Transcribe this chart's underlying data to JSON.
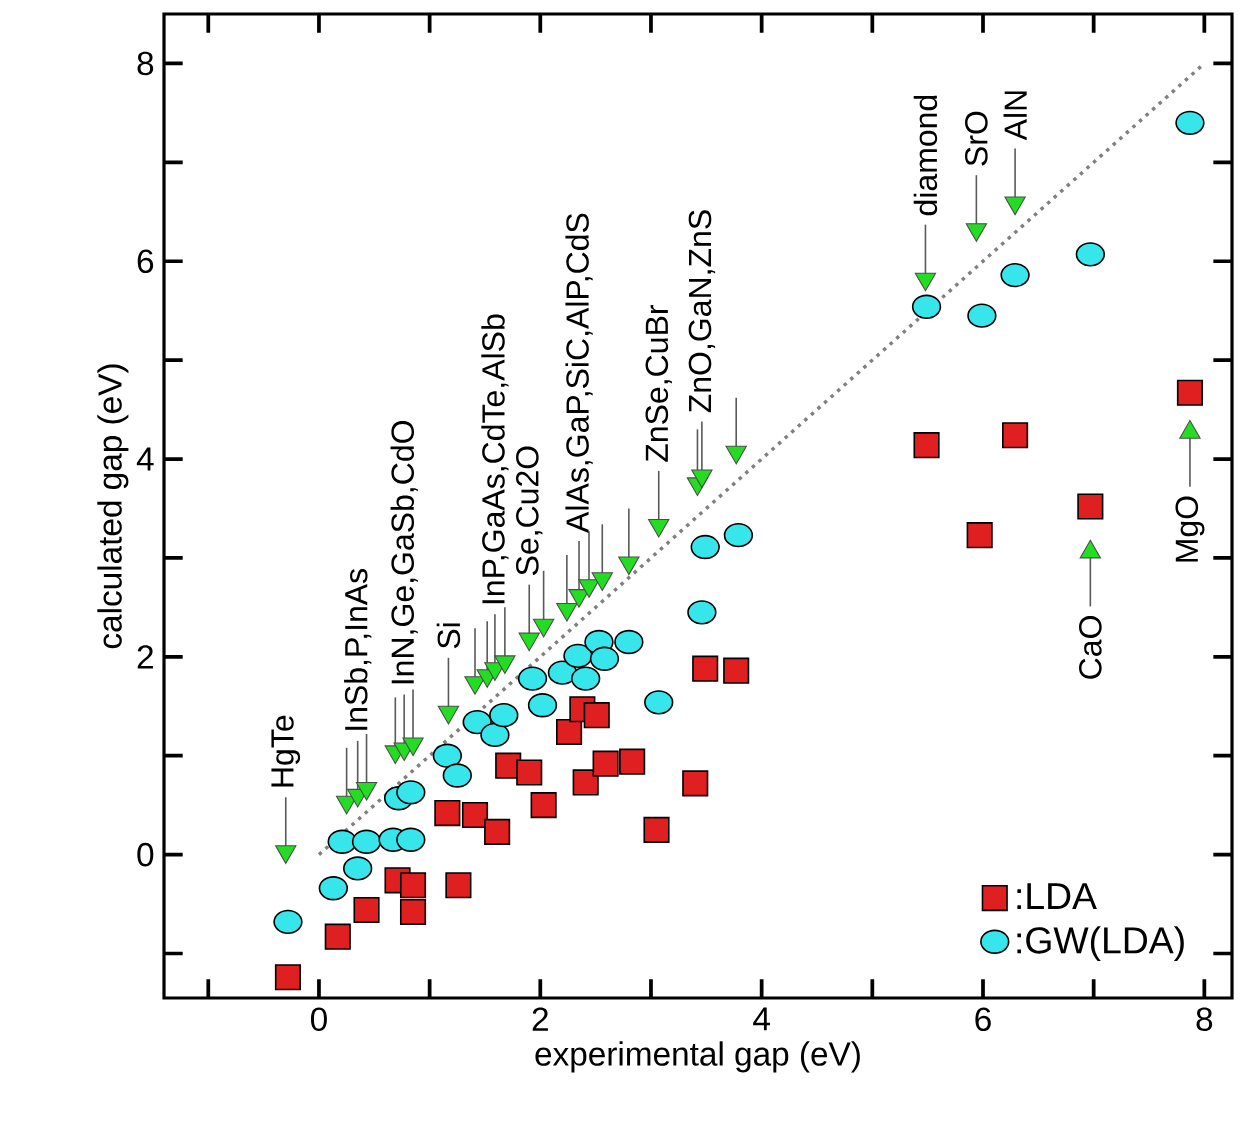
{
  "chart_data": {
    "type": "scatter",
    "xlabel": "experimental gap (eV)",
    "ylabel": "calculated gap (eV)",
    "xlim": [
      -1.4,
      8.25
    ],
    "ylim": [
      -1.45,
      8.5
    ],
    "xticks": [
      {
        "value": -1,
        "label": null
      },
      0,
      {
        "value": 1,
        "label": null
      },
      2,
      {
        "value": 3,
        "label": null
      },
      4,
      {
        "value": 5,
        "label": null
      },
      6,
      {
        "value": 7,
        "label": null
      },
      8
    ],
    "yticks": [
      {
        "value": -1,
        "label": null
      },
      0,
      {
        "value": 1,
        "label": null
      },
      2,
      {
        "value": 3,
        "label": null
      },
      4,
      {
        "value": 5,
        "label": null
      },
      6,
      {
        "value": 7,
        "label": null
      },
      8
    ],
    "legend": "bottom right",
    "series": [
      {
        "name": ":LDA",
        "marker": "square",
        "color": "#e02020",
        "x": [
          -0.28,
          0.17,
          0.43,
          0.71,
          0.85,
          0.85,
          1.26,
          1.16,
          1.41,
          1.61,
          1.71,
          1.9,
          2.03,
          2.26,
          2.38,
          2.51,
          2.41,
          2.59,
          2.83,
          3.05,
          3.4,
          3.49,
          3.77,
          5.49,
          5.97,
          6.29,
          6.97,
          7.87
        ],
        "values": [
          -1.24,
          -0.83,
          -0.56,
          -0.26,
          -0.31,
          -0.58,
          -0.31,
          0.42,
          0.4,
          0.23,
          0.9,
          0.83,
          0.5,
          1.24,
          1.47,
          1.41,
          0.73,
          0.92,
          0.94,
          0.25,
          0.72,
          1.88,
          1.86,
          4.14,
          3.23,
          4.24,
          3.52,
          4.67
        ]
      },
      {
        "name": ":GW(LDA)",
        "marker": "circle",
        "color": "#36e6ea",
        "x": [
          -0.28,
          0.13,
          0.35,
          0.21,
          0.43,
          0.67,
          0.83,
          0.72,
          0.83,
          1.16,
          1.25,
          1.43,
          1.59,
          1.67,
          2.02,
          1.93,
          2.2,
          2.34,
          2.41,
          2.53,
          2.58,
          2.8,
          3.07,
          3.46,
          3.49,
          3.79,
          5.49,
          5.99,
          6.29,
          6.97,
          7.87
        ],
        "values": [
          -0.68,
          -0.34,
          -0.14,
          0.13,
          0.13,
          0.15,
          0.15,
          0.57,
          0.63,
          1.0,
          0.8,
          1.34,
          1.21,
          1.41,
          1.51,
          1.78,
          1.84,
          2.01,
          1.78,
          2.15,
          1.98,
          2.15,
          1.54,
          2.45,
          3.11,
          3.23,
          5.54,
          5.45,
          5.86,
          6.07,
          7.4
        ]
      },
      {
        "type": "line",
        "marker": "none",
        "line_style": "dotted",
        "color": "#808080",
        "x": [
          0,
          8
        ],
        "values": [
          0,
          8
        ]
      },
      {
        "marker": "triangle",
        "color": "#22dd22",
        "x": [
          -0.3,
          0.25,
          0.35,
          0.43,
          0.69,
          0.77,
          0.85,
          1.17,
          1.41,
          1.52,
          1.59,
          1.68,
          1.9,
          2.03,
          2.24,
          2.35,
          2.44,
          2.56,
          2.8,
          3.07,
          3.42,
          3.46,
          3.77,
          5.48,
          5.94,
          6.29,
          6.97,
          7.87
        ],
        "values": [
          0.03,
          0.53,
          0.6,
          0.67,
          1.04,
          1.07,
          1.12,
          1.44,
          1.74,
          1.81,
          1.88,
          1.95,
          2.18,
          2.32,
          2.48,
          2.62,
          2.72,
          2.79,
          2.95,
          3.33,
          3.75,
          3.83,
          4.07,
          5.82,
          6.32,
          6.59,
          3.06,
          4.27
        ]
      }
    ],
    "annotations": [
      {
        "text": "HgTe",
        "x": -0.3,
        "y": 0.03
      },
      {
        "text": "InSb,P,InAs",
        "x": 0.35,
        "y": 0.6
      },
      {
        "text": "InN,Ge,GaSb,CdO",
        "x": 0.77,
        "y": 1.07
      },
      {
        "text": "Si",
        "x": 1.17,
        "y": 1.44
      },
      {
        "text": "InP,GaAs,CdTe,AlSb",
        "x": 1.59,
        "y": 1.88
      },
      {
        "text": "Se,Cu2O",
        "x": 1.9,
        "y": 2.18
      },
      {
        "text": "AlAs,GaP,SiC,AlP,CdS",
        "x": 2.35,
        "y": 2.62
      },
      {
        "text": "ZnSe,CuBr",
        "x": 3.07,
        "y": 3.33
      },
      {
        "text": "ZnO,GaN,ZnS",
        "x": 3.46,
        "y": 3.83
      },
      {
        "text": "diamond",
        "x": 5.48,
        "y": 5.82
      },
      {
        "text": "SrO",
        "x": 5.94,
        "y": 6.32
      },
      {
        "text": "AlN",
        "x": 6.29,
        "y": 6.59
      },
      {
        "text": "CaO",
        "x": 6.97,
        "y": 3.06
      },
      {
        "text": "MgO",
        "x": 7.87,
        "y": 4.27
      }
    ]
  }
}
